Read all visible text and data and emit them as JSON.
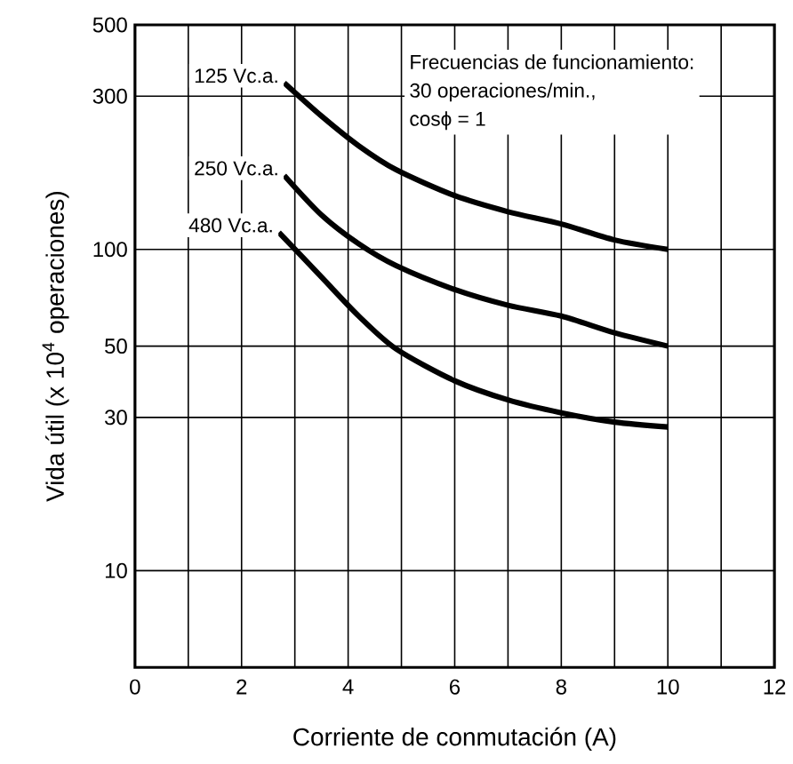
{
  "chart_data": {
    "type": "line",
    "xlabel": "Corriente de conmutación (A)",
    "ylabel": "Vida útil (x 10$^{4}$ operaciones)",
    "log": "y",
    "grid": true,
    "marker": "none",
    "line_style": "solid",
    "xlim": [
      0,
      12
    ],
    "xticks": [
      0,
      {
        "value": 1,
        "label": null
      },
      2,
      {
        "value": 3,
        "label": null
      },
      4,
      {
        "value": 5,
        "label": null
      },
      6,
      {
        "value": 7,
        "label": null
      },
      8,
      {
        "value": 9,
        "label": null
      },
      10,
      {
        "value": 11,
        "label": null
      },
      12
    ],
    "ylim": [
      5,
      500
    ],
    "yticks": [
      10,
      30,
      50,
      100,
      300,
      500
    ],
    "annotations": [
      "Frecuencias de funcionamiento:",
      "30 operaciones/min.,",
      "cosϕ = 1"
    ],
    "series": [
      {
        "name": "125 Vc.a.",
        "color": "#000000",
        "x": [
          2.8,
          3.5,
          4.2,
          4.9,
          6,
          7,
          8,
          9,
          10
        ],
        "values": [
          330,
          260,
          210,
          177,
          147,
          131,
          120,
          107,
          100
        ]
      },
      {
        "name": "250 Vc.a.",
        "color": "#000000",
        "x": [
          2.8,
          3.5,
          4.2,
          4.9,
          6,
          7,
          8,
          9,
          10
        ],
        "values": [
          170,
          128,
          104,
          89,
          75,
          67,
          62,
          55,
          50
        ]
      },
      {
        "name": "480 Vc.a.",
        "color": "#000000",
        "x": [
          2.7,
          3.5,
          4.2,
          4.9,
          6,
          7,
          8,
          9,
          10
        ],
        "values": [
          113,
          82,
          62,
          49,
          39,
          34,
          31,
          29,
          28
        ]
      }
    ]
  }
}
